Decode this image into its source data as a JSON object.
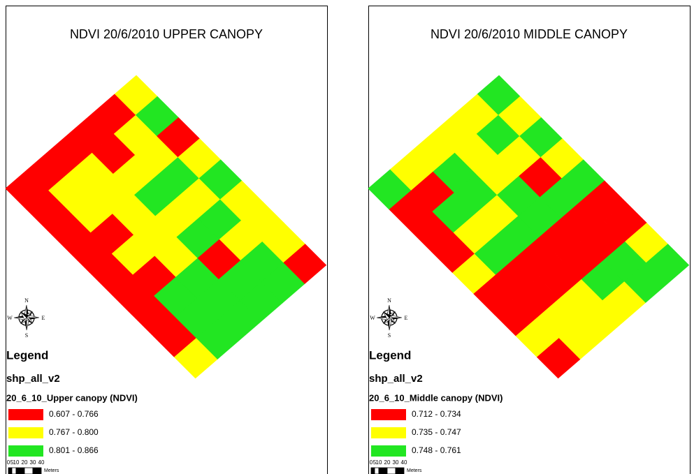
{
  "panels": [
    {
      "title": "NDVI 20/6/2010 UPPER CANOPY",
      "legend_title": "Legend",
      "layer": "shp_all_v2",
      "field": "20_6_10_Upper canopy (NDVI)",
      "classes": [
        {
          "label": "0.607 - 0.766",
          "color": "#ff0000"
        },
        {
          "label": "0.767 - 0.800",
          "color": "#ffff00"
        },
        {
          "label": "0.801 - 0.866",
          "color": "#22e622"
        }
      ],
      "scale_labels": [
        "0",
        "5",
        "10",
        "20",
        "30",
        "40"
      ],
      "scale_unit": "Meters",
      "compass": {
        "n": "N",
        "s": "S",
        "e": "E",
        "w": "W"
      }
    },
    {
      "title": "NDVI 20/6/2010 MIDDLE CANOPY",
      "legend_title": "Legend",
      "layer": "shp_all_v2",
      "field": "20_6_10_Middle canopy (NDVI)",
      "classes": [
        {
          "label": "0.712 - 0.734",
          "color": "#ff0000"
        },
        {
          "label": "0.735 - 0.747",
          "color": "#ffff00"
        },
        {
          "label": "0.748 - 0.761",
          "color": "#22e622"
        }
      ],
      "scale_labels": [
        "0",
        "5",
        "10",
        "20",
        "30",
        "40"
      ],
      "scale_unit": "Meters",
      "compass": {
        "n": "N",
        "s": "S",
        "e": "E",
        "w": "W"
      }
    }
  ]
}
